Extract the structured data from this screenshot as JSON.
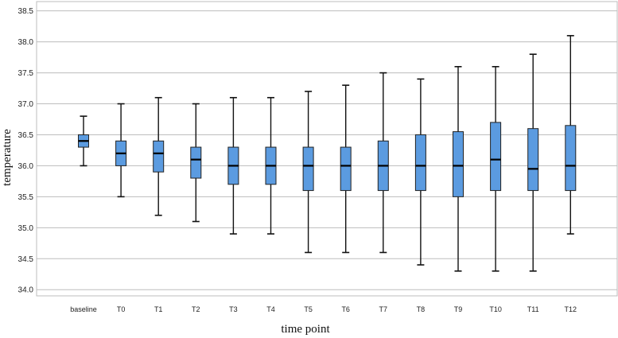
{
  "chart_data": {
    "type": "boxplot",
    "xlabel": "time point",
    "ylabel": "temperature",
    "ylim": [
      33.9,
      38.65
    ],
    "yticks": [
      "34.0",
      "34.5",
      "35.0",
      "35.5",
      "36.0",
      "36.5",
      "37.0",
      "37.5",
      "38.0",
      "38.5"
    ],
    "grid": true,
    "box_color": "#5b9be0",
    "categories": [
      "baseline",
      "T0",
      "T1",
      "T2",
      "T3",
      "T4",
      "T5",
      "T6",
      "T7",
      "T8",
      "T9",
      "T10",
      "T11",
      "T12"
    ],
    "boxes": [
      {
        "min": 36.0,
        "q1": 36.3,
        "median": 36.4,
        "q3": 36.5,
        "max": 36.8
      },
      {
        "min": 35.5,
        "q1": 36.0,
        "median": 36.2,
        "q3": 36.4,
        "max": 37.0
      },
      {
        "min": 35.2,
        "q1": 35.9,
        "median": 36.2,
        "q3": 36.4,
        "max": 37.1
      },
      {
        "min": 35.1,
        "q1": 35.8,
        "median": 36.1,
        "q3": 36.3,
        "max": 37.0
      },
      {
        "min": 34.9,
        "q1": 35.7,
        "median": 36.0,
        "q3": 36.3,
        "max": 37.1
      },
      {
        "min": 34.9,
        "q1": 35.7,
        "median": 36.0,
        "q3": 36.3,
        "max": 37.1
      },
      {
        "min": 34.6,
        "q1": 35.6,
        "median": 36.0,
        "q3": 36.3,
        "max": 37.2
      },
      {
        "min": 34.6,
        "q1": 35.6,
        "median": 36.0,
        "q3": 36.3,
        "max": 37.3
      },
      {
        "min": 34.6,
        "q1": 35.6,
        "median": 36.0,
        "q3": 36.4,
        "max": 37.5
      },
      {
        "min": 34.4,
        "q1": 35.6,
        "median": 36.0,
        "q3": 36.5,
        "max": 37.4
      },
      {
        "min": 34.3,
        "q1": 35.5,
        "median": 36.0,
        "q3": 36.55,
        "max": 37.6
      },
      {
        "min": 34.3,
        "q1": 35.6,
        "median": 36.1,
        "q3": 36.7,
        "max": 37.6
      },
      {
        "min": 34.3,
        "q1": 35.6,
        "median": 35.95,
        "q3": 36.6,
        "max": 37.8
      },
      {
        "min": 34.9,
        "q1": 35.6,
        "median": 36.0,
        "q3": 36.65,
        "max": 38.1
      }
    ]
  }
}
